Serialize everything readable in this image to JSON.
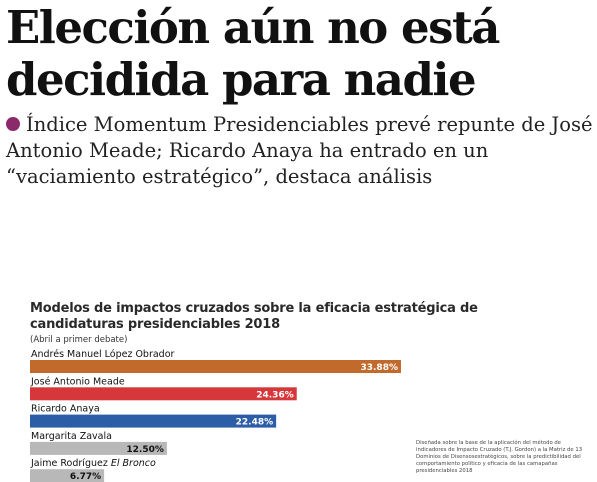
{
  "headline": "Elección aún no está decidida para nadie",
  "dek": "Índice Momentum Presidenciables prevé repunte de José Antonio Meade; Ricardo Anaya ha entrado en un “vaciamiento estratégico”, destaca análisis",
  "footnote": "Diseñada sobre la base de la aplicación del método de indicadores de Impacto Cruzado (T.J. Gordon) a la Matriz de 13 Dominios de Disensosestratégicos, sobre la predictibilidad del comportamiento político y eficacia de las camapañas presidenciables 2018",
  "chart_data": {
    "type": "bar",
    "orientation": "horizontal",
    "title": "Modelos de impactos cruzados sobre la eficacia estratégica de candidaturas presidenciables 2018",
    "subtitle": "(Abril a primer debate)",
    "unit": "%",
    "categories": [
      "Andrés Manuel López Obrador",
      "José Antonio Meade",
      "Ricardo Anaya",
      "Margarita Zavala",
      "Jaime Rodríguez El Bronco"
    ],
    "values": [
      33.88,
      24.36,
      22.48,
      12.5,
      6.77
    ],
    "value_labels": [
      "33.88%",
      "24.36%",
      "22.48%",
      "12.50%",
      "6.77%"
    ],
    "colors": [
      "#c26a2c",
      "#d6373a",
      "#2b5ea7",
      "#b8b8b8",
      "#b8b8b8"
    ],
    "label_colors": [
      "#ffffff",
      "#ffffff",
      "#ffffff",
      "#111111",
      "#111111"
    ]
  }
}
